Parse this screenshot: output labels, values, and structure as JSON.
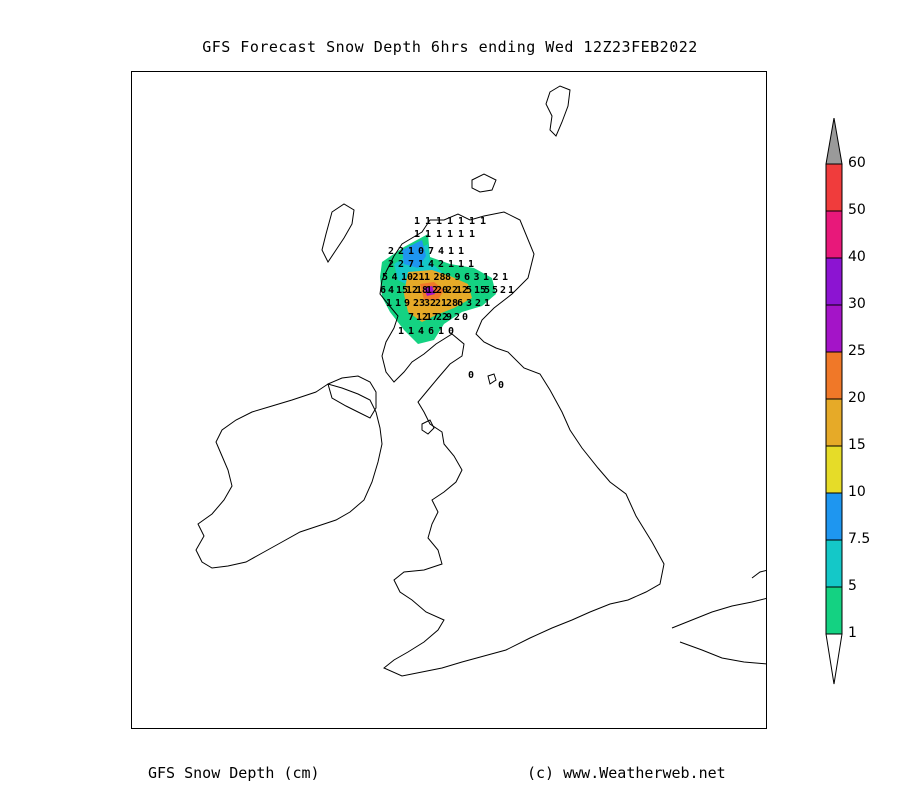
{
  "title": "GFS Forecast Snow Depth 6hrs ending Wed 12Z23FEB2022",
  "footer": {
    "left": "GFS Snow Depth (cm)",
    "right": "(c) www.Weatherweb.net"
  },
  "legend": {
    "levels": [
      {
        "label": "60",
        "color": "#9a9a9a"
      },
      {
        "label": "50",
        "color": "#f03c3c"
      },
      {
        "label": "40",
        "color": "#e8187a"
      },
      {
        "label": "30",
        "color": "#8c14d2"
      },
      {
        "label": "25",
        "color": "#a414c8"
      },
      {
        "label": "20",
        "color": "#f07828"
      },
      {
        "label": "15",
        "color": "#e6aa28"
      },
      {
        "label": "10",
        "color": "#e6dc28"
      },
      {
        "label": "7.5",
        "color": "#1e96f0"
      },
      {
        "label": "5",
        "color": "#14c8c8"
      },
      {
        "label": "1",
        "color": "#14d282"
      }
    ]
  },
  "map_data": {
    "region": "British Isles",
    "variable": "Snow depth",
    "units": "cm",
    "grid_rows": [
      {
        "row": 1,
        "values": [
          "1",
          "1",
          "1",
          "1",
          "1",
          "1",
          "1"
        ]
      },
      {
        "row": 2,
        "values": [
          "1",
          "1",
          "1",
          "1",
          "1",
          "1"
        ]
      },
      {
        "row": 3,
        "values": [
          "2",
          "2",
          "1",
          "0",
          "7",
          "4",
          "1",
          "1"
        ]
      },
      {
        "row": 4,
        "values": [
          "2",
          "2",
          "7",
          "1",
          "4",
          "2",
          "1",
          "1",
          "1"
        ]
      },
      {
        "row": 5,
        "values": [
          "5",
          "4",
          "10",
          "21",
          "1",
          "28",
          "8",
          "9",
          "6",
          "3",
          "1",
          "2",
          "1"
        ]
      },
      {
        "row": 6,
        "values": [
          "6",
          "4",
          "15",
          "12",
          "18",
          "12",
          "20",
          "22",
          "12",
          "5",
          "15",
          "5",
          "5",
          "2",
          "1"
        ]
      },
      {
        "row": 7,
        "values": [
          "1",
          "1",
          "9",
          "23",
          "32",
          "21",
          "28",
          "6",
          "3",
          "2",
          "1"
        ]
      },
      {
        "row": 8,
        "values": [
          "7",
          "12",
          "17",
          "22",
          "9",
          "2",
          "0"
        ]
      },
      {
        "row": 9,
        "values": [
          "1",
          "1",
          "4",
          "6",
          "1",
          "0"
        ]
      }
    ],
    "isolated_values": [
      "0",
      "0"
    ]
  }
}
